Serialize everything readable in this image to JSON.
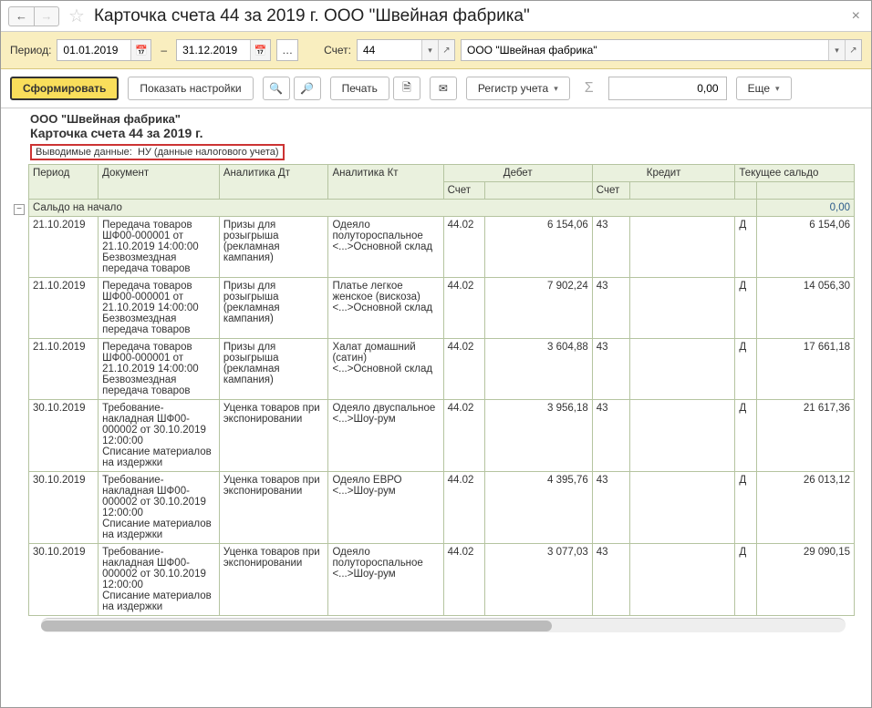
{
  "window": {
    "title": "Карточка счета 44 за 2019 г. ООО \"Швейная фабрика\""
  },
  "period": {
    "label": "Период:",
    "from": "01.01.2019",
    "to": "31.12.2019",
    "account_label": "Счет:",
    "account": "44",
    "org": "ООО \"Швейная фабрика\""
  },
  "toolbar": {
    "generate": "Сформировать",
    "show_settings": "Показать настройки",
    "print": "Печать",
    "register": "Регистр учета",
    "more": "Еще",
    "sum_value": "0,00"
  },
  "report": {
    "org": "ООО \"Швейная фабрика\"",
    "title": "Карточка счета 44 за 2019 г.",
    "sub_label": "Выводимые данные:",
    "sub_hl": "НУ (данные налогового учета)"
  },
  "columns": {
    "period": "Период",
    "document": "Документ",
    "an_dt": "Аналитика Дт",
    "an_kt": "Аналитика Кт",
    "debit": "Дебет",
    "credit": "Кредит",
    "balance": "Текущее сальдо",
    "acct": "Счет"
  },
  "opening": {
    "label": "Сальдо на начало",
    "value": "0,00"
  },
  "rows": [
    {
      "period": "21.10.2019",
      "doc": "Передача товаров ШФ00-000001 от 21.10.2019 14:00:00\nБезвозмездная передача товаров",
      "an_dt": "Призы для розыгрыша (рекламная кампания)",
      "an_kt": "Одеяло полутороспальное\n<...>Основной склад",
      "d_acc": "44.02",
      "d_sum": "6 154,06",
      "c_acc": "43",
      "c_sum": "",
      "bal_dc": "Д",
      "bal": "6 154,06"
    },
    {
      "period": "21.10.2019",
      "doc": "Передача товаров ШФ00-000001 от 21.10.2019 14:00:00\nБезвозмездная передача товаров",
      "an_dt": "Призы для розыгрыша (рекламная кампания)",
      "an_kt": "Платье легкое женское (вискоза)\n<...>Основной склад",
      "d_acc": "44.02",
      "d_sum": "7 902,24",
      "c_acc": "43",
      "c_sum": "",
      "bal_dc": "Д",
      "bal": "14 056,30"
    },
    {
      "period": "21.10.2019",
      "doc": "Передача товаров ШФ00-000001 от 21.10.2019 14:00:00\nБезвозмездная передача товаров",
      "an_dt": "Призы для розыгрыша (рекламная кампания)",
      "an_kt": "Халат домашний (сатин)\n<...>Основной склад",
      "d_acc": "44.02",
      "d_sum": "3 604,88",
      "c_acc": "43",
      "c_sum": "",
      "bal_dc": "Д",
      "bal": "17 661,18"
    },
    {
      "period": "30.10.2019",
      "doc": "Требование-накладная ШФ00-000002 от 30.10.2019 12:00:00\nСписание материалов на издержки",
      "an_dt": "Уценка товаров при экспонировании",
      "an_kt": "Одеяло двуспальное\n<...>Шоу-рум",
      "d_acc": "44.02",
      "d_sum": "3 956,18",
      "c_acc": "43",
      "c_sum": "",
      "bal_dc": "Д",
      "bal": "21 617,36"
    },
    {
      "period": "30.10.2019",
      "doc": "Требование-накладная ШФ00-000002 от 30.10.2019 12:00:00\nСписание материалов на издержки",
      "an_dt": "Уценка товаров при экспонировании",
      "an_kt": "Одеяло ЕВРО\n<...>Шоу-рум",
      "d_acc": "44.02",
      "d_sum": "4 395,76",
      "c_acc": "43",
      "c_sum": "",
      "bal_dc": "Д",
      "bal": "26 013,12"
    },
    {
      "period": "30.10.2019",
      "doc": "Требование-накладная ШФ00-000002 от 30.10.2019 12:00:00\nСписание материалов на издержки",
      "an_dt": "Уценка товаров при экспонировании",
      "an_kt": "Одеяло полутороспальное\n<...>Шоу-рум",
      "d_acc": "44.02",
      "d_sum": "3 077,03",
      "c_acc": "43",
      "c_sum": "",
      "bal_dc": "Д",
      "bal": "29 090,15"
    }
  ],
  "col_widths": {
    "period": 70,
    "doc": 122,
    "an_dt": 110,
    "an_kt": 116,
    "d_acc": 42,
    "d_sum": 108,
    "c_acc": 38,
    "c_sum": 106,
    "bal_dc": 22,
    "bal": 98
  },
  "colors": {
    "header_bg": "#eaf1de",
    "border": "#b5c4a0",
    "period_bar": "#f9eebf",
    "primary_btn": "#f9de5b",
    "highlight_border": "#cc3333"
  }
}
